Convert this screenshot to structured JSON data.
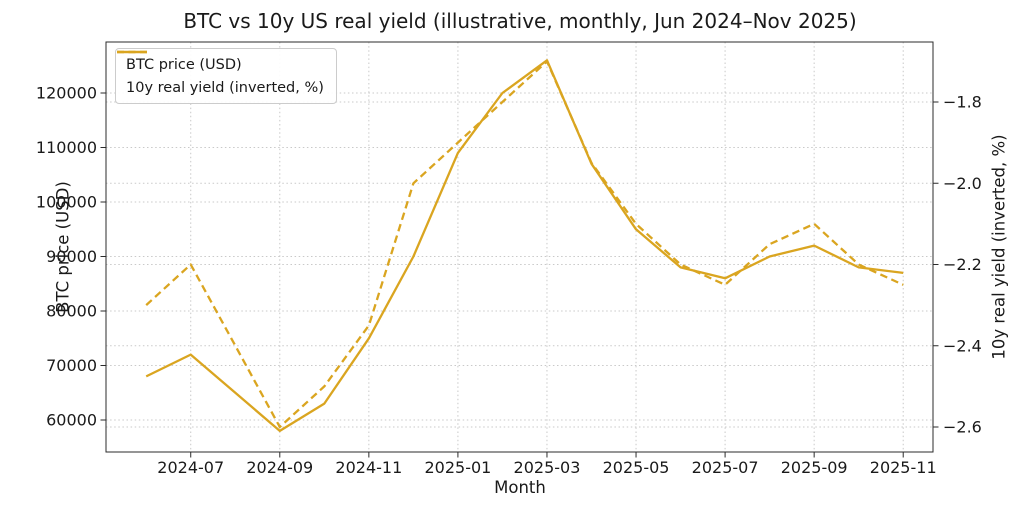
{
  "colors": {
    "line": "#DAA520",
    "grid": "#c9c9c9",
    "spine": "#2b2b2b",
    "text": "#1a1a1a"
  },
  "chart_data": {
    "type": "line",
    "title": "BTC vs 10y US real yield (illustrative, monthly, Jun 2024–Nov 2025)",
    "xlabel": "Month",
    "ylabel_left": "BTC price (USD)",
    "ylabel_right": "10y real yield (inverted, %)",
    "grid": "dotted",
    "legend_position": "upper left",
    "x": [
      "2024-06",
      "2024-07",
      "2024-08",
      "2024-09",
      "2024-10",
      "2024-11",
      "2024-12",
      "2025-01",
      "2025-02",
      "2025-03",
      "2025-04",
      "2025-05",
      "2025-06",
      "2025-07",
      "2025-08",
      "2025-09",
      "2025-10",
      "2025-11"
    ],
    "x_tick_labels": [
      "2024-07",
      "2024-09",
      "2024-11",
      "2025-01",
      "2025-03",
      "2025-05",
      "2025-07",
      "2025-09",
      "2025-11"
    ],
    "y_left_ticks": [
      60000,
      70000,
      80000,
      90000,
      100000,
      110000,
      120000
    ],
    "y_left_tick_labels": [
      "60000",
      "70000",
      "80000",
      "90000",
      "100000",
      "110000",
      "120000"
    ],
    "y_left_range": [
      54300,
      129400
    ],
    "y_right_ticks": [
      -1.8,
      -2.0,
      -2.2,
      -2.4,
      -2.6
    ],
    "y_right_tick_labels": [
      "−1.8",
      "−2.0",
      "−2.2",
      "−2.4",
      "−2.6"
    ],
    "y_right_range": [
      -2.645,
      -1.655
    ],
    "series": [
      {
        "name": "BTC price (USD)",
        "axis": "left",
        "style": "solid",
        "color": "#DAA520",
        "values": [
          68000,
          72000,
          65000,
          58000,
          63000,
          75000,
          90000,
          109000,
          120000,
          126000,
          107000,
          95000,
          88000,
          86000,
          90000,
          92000,
          88000,
          87000
        ]
      },
      {
        "name": "10y real yield (inverted, %)",
        "axis": "right",
        "style": "dashed",
        "color": "#DAA520",
        "values": [
          -2.3,
          -2.2,
          -2.4,
          -2.6,
          -2.5,
          -2.35,
          -2.0,
          -1.9,
          -1.8,
          -1.7,
          -1.95,
          -2.1,
          -2.2,
          -2.25,
          -2.15,
          -2.1,
          -2.2,
          -2.25
        ]
      }
    ]
  }
}
